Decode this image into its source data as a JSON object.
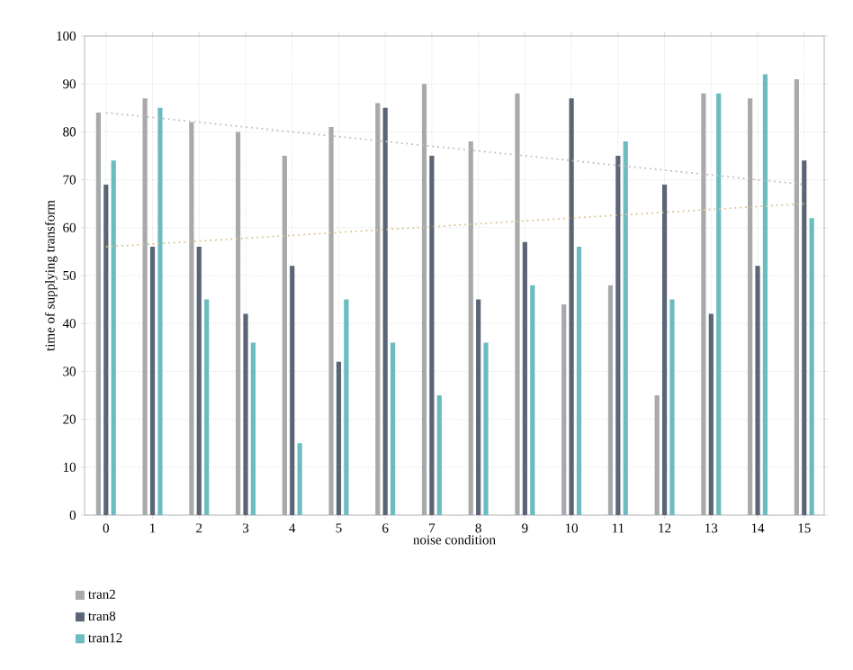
{
  "chart_data": {
    "type": "bar",
    "xlabel": "noise condition",
    "ylabel": "time of supplying transform",
    "categories": [
      "0",
      "1",
      "2",
      "3",
      "4",
      "5",
      "6",
      "7",
      "8",
      "9",
      "10",
      "11",
      "12",
      "13",
      "14",
      "15"
    ],
    "series": [
      {
        "name": "tran2",
        "color": "#a8a9ab",
        "values": [
          84,
          87,
          82,
          80,
          75,
          81,
          86,
          90,
          78,
          88,
          44,
          48,
          25,
          88,
          87,
          91
        ]
      },
      {
        "name": "tran8",
        "color": "#5a6576",
        "values": [
          69,
          56,
          56,
          42,
          52,
          32,
          85,
          75,
          45,
          57,
          87,
          75,
          69,
          42,
          52,
          74
        ]
      },
      {
        "name": "tran12",
        "color": "#6bbcc0",
        "values": [
          74,
          85,
          45,
          36,
          15,
          45,
          36,
          25,
          36,
          48,
          56,
          78,
          45,
          88,
          92,
          62
        ]
      },
      {
        "type": "line",
        "color": "#bdbdbd",
        "line_style": "dotted",
        "values": [
          84,
          null,
          null,
          null,
          null,
          null,
          null,
          null,
          null,
          null,
          null,
          null,
          null,
          null,
          null,
          69
        ]
      },
      {
        "type": "line",
        "color": "#d9c48a",
        "line_style": "dotted",
        "values": [
          56,
          null,
          null,
          null,
          null,
          null,
          null,
          null,
          null,
          null,
          null,
          null,
          null,
          null,
          null,
          65
        ]
      }
    ],
    "ylim": [
      0,
      100
    ],
    "yticks": [
      0,
      10,
      20,
      30,
      40,
      50,
      60,
      70,
      80,
      90,
      100
    ],
    "grid": true,
    "legend": "bottom left"
  }
}
